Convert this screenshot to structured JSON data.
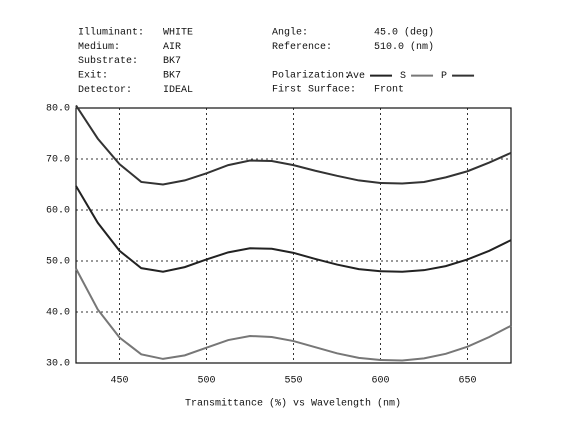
{
  "chart_data": {
    "type": "line",
    "annotations_left": [
      {
        "label": "Illuminant:",
        "value": "WHITE"
      },
      {
        "label": "Medium:",
        "value": "AIR"
      },
      {
        "label": "Substrate:",
        "value": "BK7"
      },
      {
        "label": "Exit:",
        "value": "BK7"
      },
      {
        "label": "Detector:",
        "value": "IDEAL"
      }
    ],
    "annotations_right": [
      {
        "label": "Angle:",
        "value": "45.0 (deg)"
      },
      {
        "label": "Reference:",
        "value": "510.0 (nm)"
      }
    ],
    "legend_title": "Polarization:",
    "annotation_last": {
      "label": "First Surface:",
      "value": "Front"
    },
    "x_label": "Transmittance (%)  vs  Wavelength (nm)",
    "x": [
      425,
      437.5,
      450,
      462.5,
      475,
      487.5,
      500,
      512.5,
      525,
      537.5,
      550,
      562.5,
      575,
      587.5,
      600,
      612.5,
      625,
      637.5,
      650,
      662.5,
      675
    ],
    "series": [
      {
        "name": "Ave",
        "color": "#222222",
        "values": [
          64.7,
          57.5,
          52,
          48.6,
          47.9,
          48.8,
          50.3,
          51.7,
          52.5,
          52.4,
          51.6,
          50.4,
          49.3,
          48.4,
          48.0,
          47.9,
          48.2,
          49.0,
          50.3,
          52.0,
          54.1
        ]
      },
      {
        "name": "S",
        "color": "#777777",
        "values": [
          48.5,
          40.5,
          35,
          31.7,
          30.8,
          31.5,
          33,
          34.5,
          35.3,
          35.1,
          34.3,
          33.1,
          31.9,
          31.0,
          30.6,
          30.5,
          30.9,
          31.8,
          33.2,
          35.1,
          37.3
        ]
      },
      {
        "name": "P",
        "color": "#333333",
        "values": [
          80.5,
          74,
          69,
          65.5,
          65,
          65.8,
          67.2,
          68.8,
          69.7,
          69.6,
          68.8,
          67.7,
          66.7,
          65.8,
          65.3,
          65.2,
          65.5,
          66.4,
          67.6,
          69.3,
          71.2
        ]
      }
    ],
    "xlim": [
      425,
      675
    ],
    "xticks": [
      450,
      500,
      550,
      600,
      650
    ],
    "ylim": [
      30,
      80
    ],
    "yticks": [
      {
        "value": 30,
        "label": "30.0"
      },
      {
        "value": 40,
        "label": "40.0"
      },
      {
        "value": 50,
        "label": "50.0"
      },
      {
        "value": 60,
        "label": "60.0"
      },
      {
        "value": 70,
        "label": "70.0"
      },
      {
        "value": 80,
        "label": "80.0"
      }
    ],
    "grid": true
  }
}
